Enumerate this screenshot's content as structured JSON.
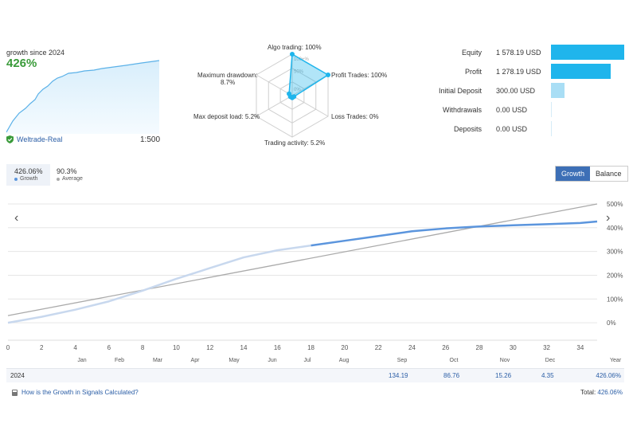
{
  "summary": {
    "growth_since": "growth since 2024",
    "growth_pct": "426%",
    "broker": "Weltrade-Real",
    "leverage": "1:500",
    "colors": {
      "growth": "#3a9b3a",
      "line": "#5bb1e8"
    }
  },
  "radar": {
    "axes": [
      {
        "label": "Algo trading: 100%",
        "value": 1.0
      },
      {
        "label": "Profit Trades: 100%",
        "value": 1.0
      },
      {
        "label": "Loss Trades: 0%",
        "value": 0.0
      },
      {
        "label": "Trading activity: 5.2%",
        "value": 0.052
      },
      {
        "label": "Max deposit load: 5.2%",
        "value": 0.052
      },
      {
        "label": "Maximum drawdown:",
        "value": 0.087
      }
    ],
    "drawdown_value": "8.7%",
    "ring_labels": [
      "100+%",
      "50%",
      "0%"
    ]
  },
  "stats": [
    {
      "label": "Equity",
      "value": "1 578.19 USD",
      "amount": 1578.19,
      "color": "#1fb5ec"
    },
    {
      "label": "Profit",
      "value": "1 278.19 USD",
      "amount": 1278.19,
      "color": "#1fb5ec"
    },
    {
      "label": "Initial Deposit",
      "value": "300.00 USD",
      "amount": 300.0,
      "color": "#a9def5"
    },
    {
      "label": "Withdrawals",
      "value": "0.00 USD",
      "amount": 0,
      "color": "#1fb5ec"
    },
    {
      "label": "Deposits",
      "value": "0.00 USD",
      "amount": 0,
      "color": "#1fb5ec"
    }
  ],
  "period": {
    "growth_value": "426.06%",
    "growth_label": "Growth",
    "average_value": "90.3%",
    "average_label": "Average"
  },
  "buttons": {
    "growth": "Growth",
    "balance": "Balance"
  },
  "chart_data": {
    "type": "line",
    "x_ticks": [
      0,
      2,
      4,
      6,
      8,
      10,
      12,
      14,
      16,
      18,
      20,
      22,
      24,
      26,
      28,
      30,
      32,
      34
    ],
    "x_months": [
      "Jan",
      "Feb",
      "Mar",
      "Apr",
      "May",
      "Jun",
      "Jul",
      "Aug",
      "Sep",
      "Oct",
      "Nov",
      "Dec"
    ],
    "xlabel": "Year",
    "y_ticks": [
      "0%",
      "100%",
      "200%",
      "300%",
      "400%",
      "500%"
    ],
    "ylim": [
      -50,
      520
    ],
    "xlim": [
      0,
      35
    ],
    "series": [
      {
        "x": [
          0,
          2,
          4,
          6,
          8,
          10,
          12,
          14,
          16,
          18
        ],
        "y": [
          0,
          25,
          55,
          90,
          135,
          185,
          230,
          275,
          305,
          325
        ],
        "color": "#c8d8ee"
      },
      {
        "x": [
          18,
          20,
          22,
          24,
          26,
          28,
          30,
          32,
          34,
          35
        ],
        "y": [
          325,
          345,
          365,
          385,
          397,
          405,
          410,
          415,
          420,
          426
        ],
        "color": "#5b95dd"
      },
      {
        "x": [
          0,
          35
        ],
        "y": [
          30,
          500
        ],
        "color": "#aaaaaa"
      }
    ]
  },
  "year_row": {
    "year": "2024",
    "sep": "134.19",
    "oct": "86.76",
    "nov": "15.26",
    "dec": "4.35",
    "year_total": "426.06%"
  },
  "help_text": "How is the Growth in Signals Calculated?",
  "total_label": "Total:",
  "total_value": "426.06%"
}
